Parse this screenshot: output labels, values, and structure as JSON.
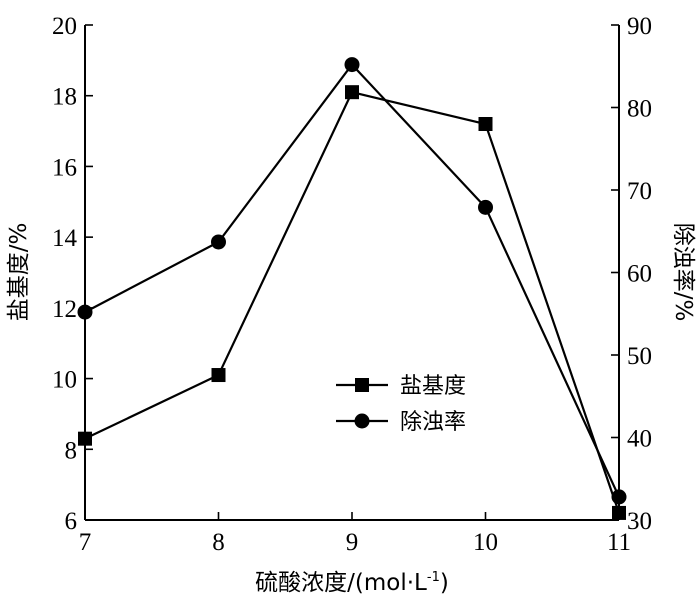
{
  "chart_data": {
    "type": "line",
    "x": [
      7,
      8,
      9,
      10,
      11
    ],
    "xlim": [
      7,
      11
    ],
    "xticks": [
      7,
      8,
      9,
      10,
      11
    ],
    "xlabel": "硫酸浓度/(mol·L",
    "xlabel_sup": "-1",
    "xlabel_suffix": ")",
    "ylabel_left": "盐基度/%",
    "ylabel_right": "除浊率/%",
    "ylim_left": [
      6,
      20
    ],
    "yticks_left": [
      6,
      8,
      10,
      12,
      14,
      16,
      18,
      20
    ],
    "ylim_right": [
      30,
      90
    ],
    "yticks_right": [
      30,
      40,
      50,
      60,
      70,
      80,
      90
    ],
    "series": [
      {
        "name": "盐基度",
        "axis": "left",
        "marker": "square",
        "values": [
          8.3,
          10.1,
          18.1,
          17.2,
          6.2
        ]
      },
      {
        "name": "除浊率",
        "axis": "right",
        "marker": "circle",
        "values": [
          55.2,
          63.7,
          85.2,
          67.9,
          32.8
        ]
      }
    ],
    "legend_position": "center-right",
    "grid": false
  }
}
